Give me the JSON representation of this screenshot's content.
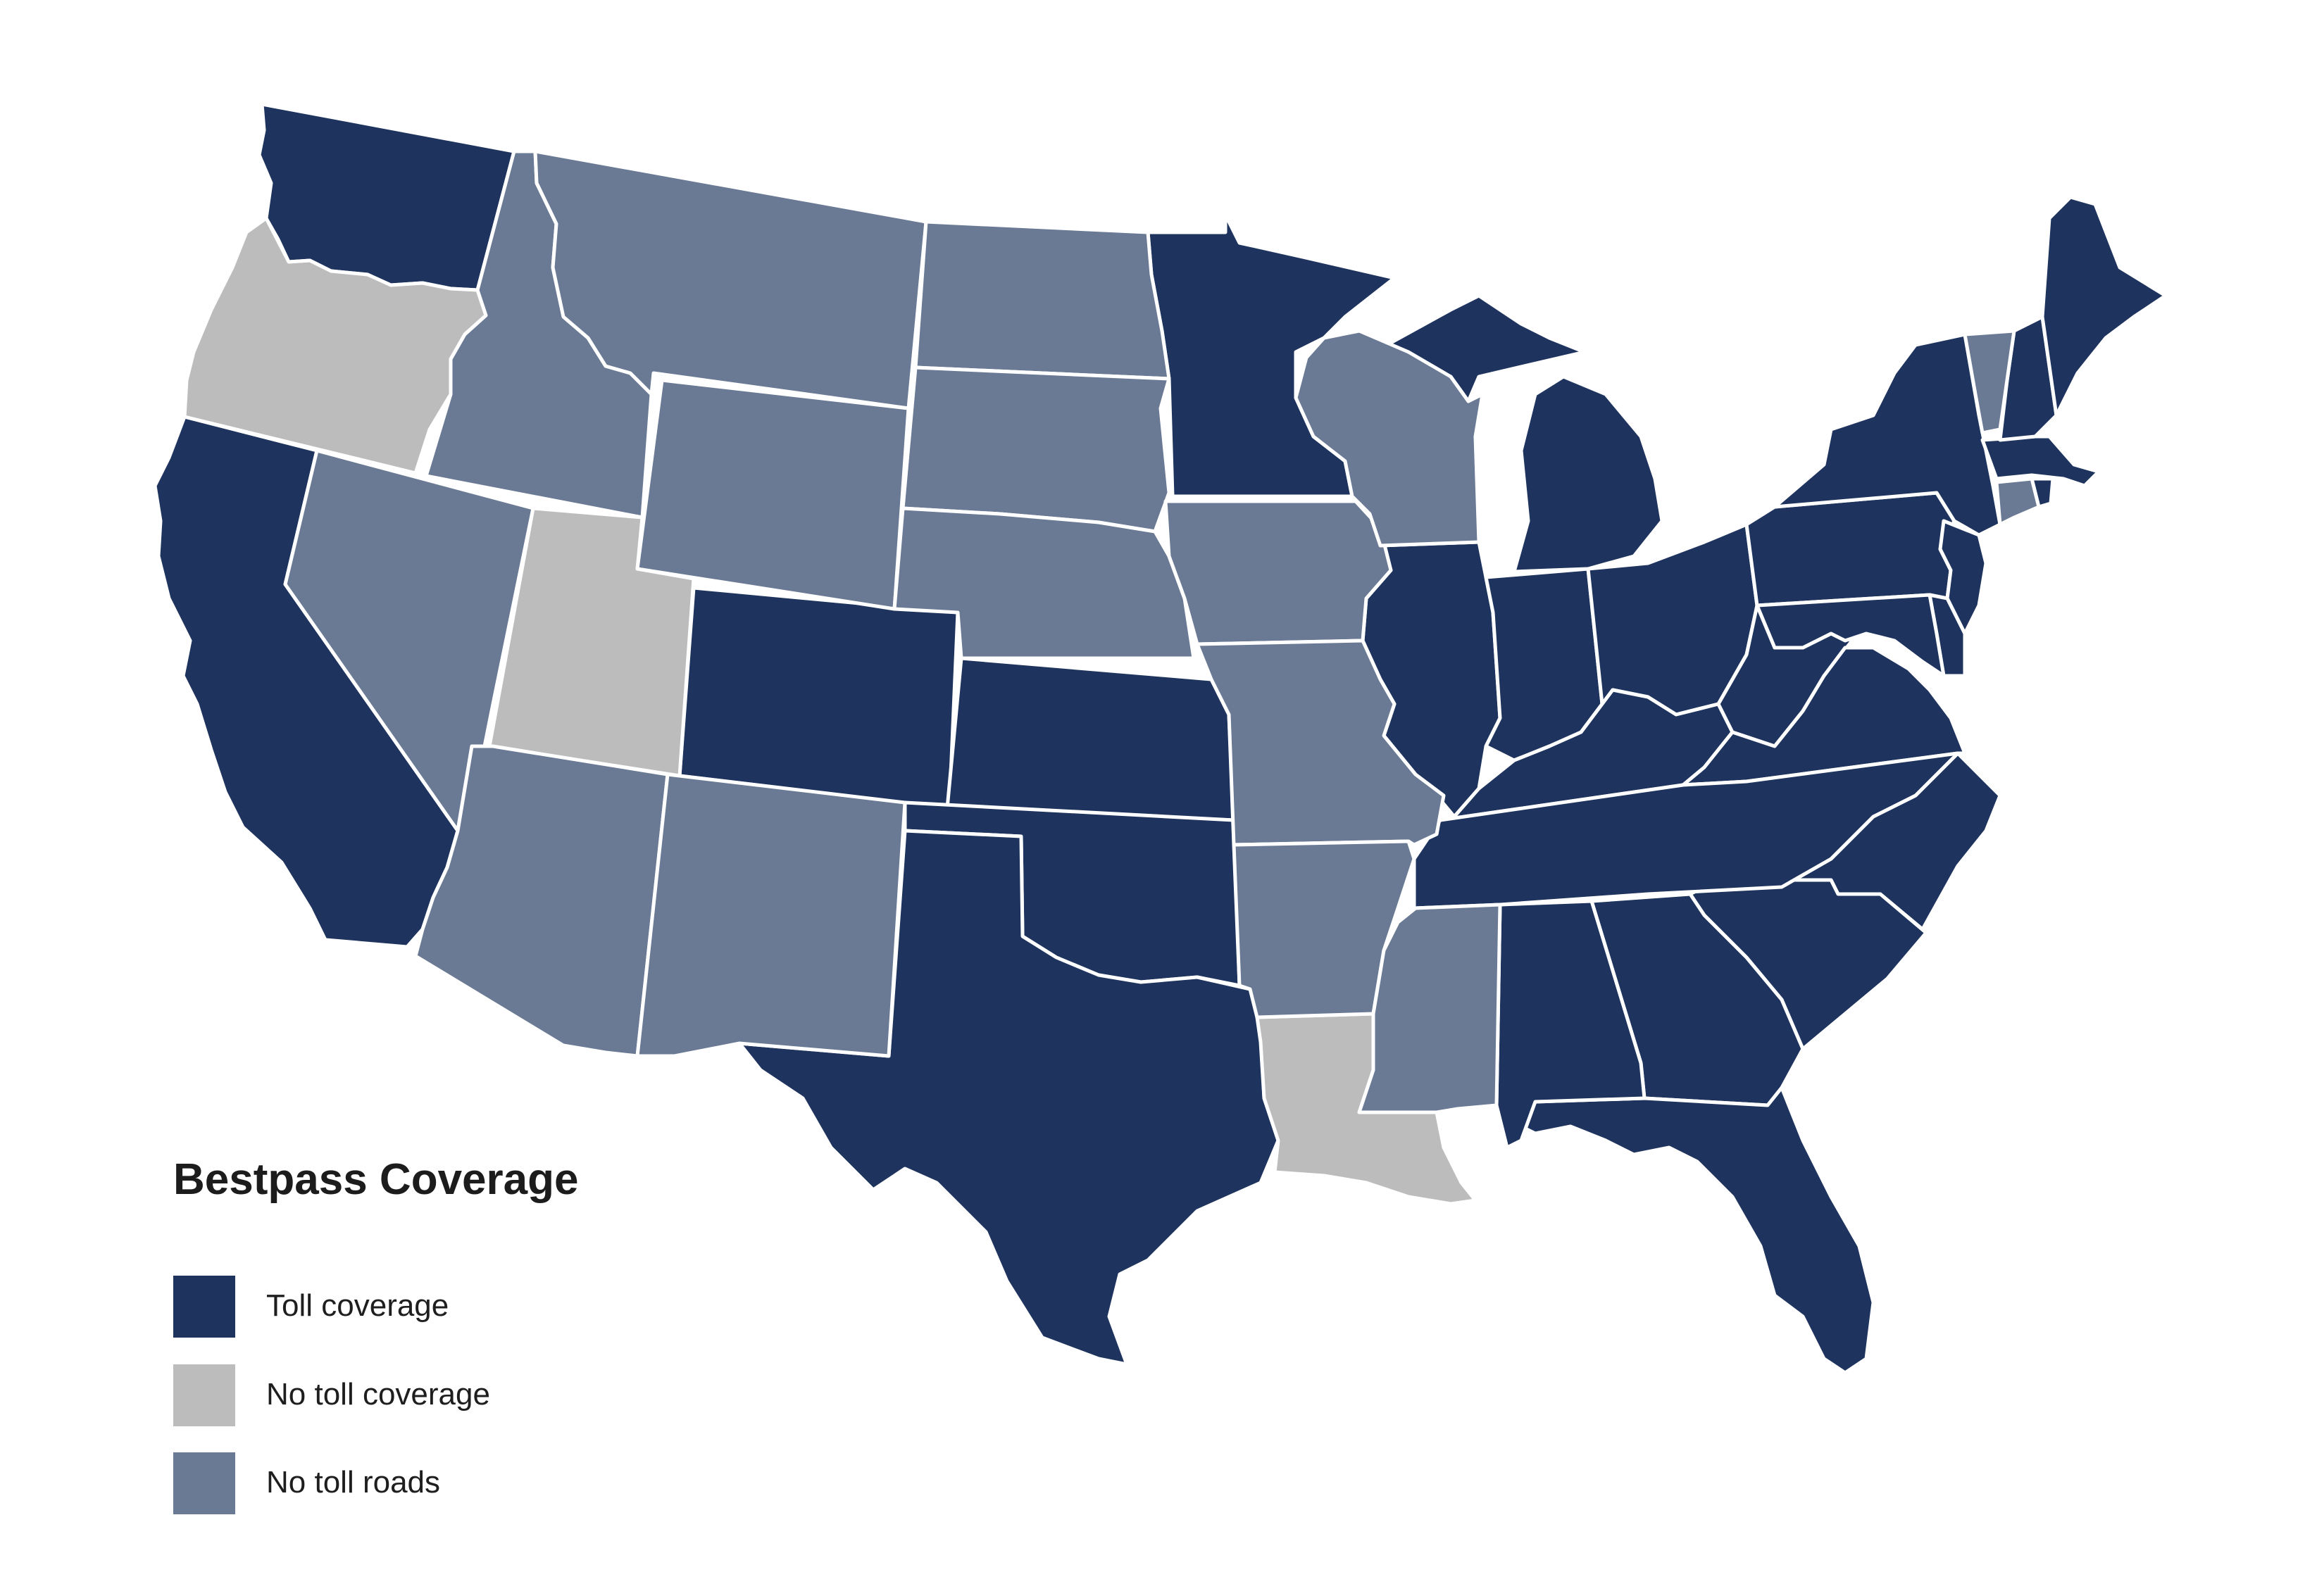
{
  "legend": {
    "title": "Bestpass Coverage",
    "items": [
      {
        "label": "Toll coverage",
        "color": "#1e345e"
      },
      {
        "label": "No toll coverage",
        "color": "#bcbcbc"
      },
      {
        "label": "No toll roads",
        "color": "#6a7a94"
      }
    ]
  },
  "map_data": {
    "categories": {
      "toll_coverage": [
        "WA",
        "CA",
        "CO",
        "KS",
        "OK",
        "TX",
        "MN",
        "IL",
        "IN",
        "MI",
        "OH",
        "KY",
        "WV",
        "VA",
        "NC",
        "SC",
        "GA",
        "FL",
        "AL",
        "TN",
        "PA",
        "NY",
        "NJ",
        "DE",
        "MD",
        "MA",
        "NH",
        "ME",
        "RI"
      ],
      "no_toll_coverage": [
        "OR",
        "UT",
        "LA"
      ],
      "no_toll_roads": [
        "ID",
        "MT",
        "ND",
        "SD",
        "WY",
        "NV",
        "AZ",
        "NM",
        "NE",
        "IA",
        "WI",
        "MO",
        "AR",
        "MS",
        "VT",
        "CT"
      ]
    },
    "colors": {
      "toll_coverage": "#1e345e",
      "no_toll_coverage": "#bcbcbc",
      "no_toll_roads": "#6a7a94",
      "border": "#ffffff"
    }
  }
}
